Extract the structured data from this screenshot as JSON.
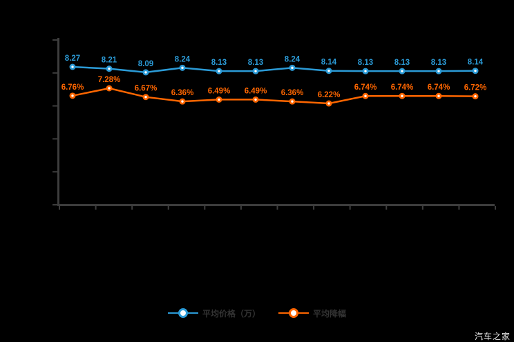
{
  "watermark": "汽车之家",
  "colors": {
    "series_blue": "#2b9bd7",
    "series_orange": "#ff6600",
    "axis": "#3d3d3d",
    "legend_text": "#333333",
    "background": "#000000",
    "watermark_text": "#ededed"
  },
  "legend": {
    "items": [
      {
        "label": "平均价格（万）",
        "color": "#2b9bd7"
      },
      {
        "label": "平均降幅",
        "color": "#ff6600"
      }
    ]
  },
  "chart_data": {
    "type": "line",
    "title": "",
    "xlabel": "",
    "ylabel": "",
    "x_tick_labels_visible": false,
    "y_tick_labels_visible": false,
    "y_tick_count": 6,
    "x_tick_count": 13,
    "grid": false,
    "legend_position": "bottom",
    "point_count": 12,
    "series": [
      {
        "name": "平均价格（万）",
        "color": "#2b9bd7",
        "unit": "万",
        "values": [
          8.27,
          8.21,
          8.09,
          8.24,
          8.13,
          8.13,
          8.24,
          8.14,
          8.13,
          8.13,
          8.13,
          8.14
        ],
        "labels": [
          "8.27",
          "8.21",
          "8.09",
          "8.24",
          "8.13",
          "8.13",
          "8.24",
          "8.14",
          "8.13",
          "8.13",
          "8.13",
          "8.14"
        ]
      },
      {
        "name": "平均降幅",
        "color": "#ff6600",
        "unit": "%",
        "values": [
          6.76,
          7.28,
          6.67,
          6.36,
          6.49,
          6.49,
          6.36,
          6.22,
          6.74,
          6.74,
          6.74,
          6.72
        ],
        "labels": [
          "6.76%",
          "7.28%",
          "6.67%",
          "6.36%",
          "6.49%",
          "6.49%",
          "6.36%",
          "6.22%",
          "6.74%",
          "6.74%",
          "6.74%",
          "6.72%"
        ]
      }
    ]
  }
}
